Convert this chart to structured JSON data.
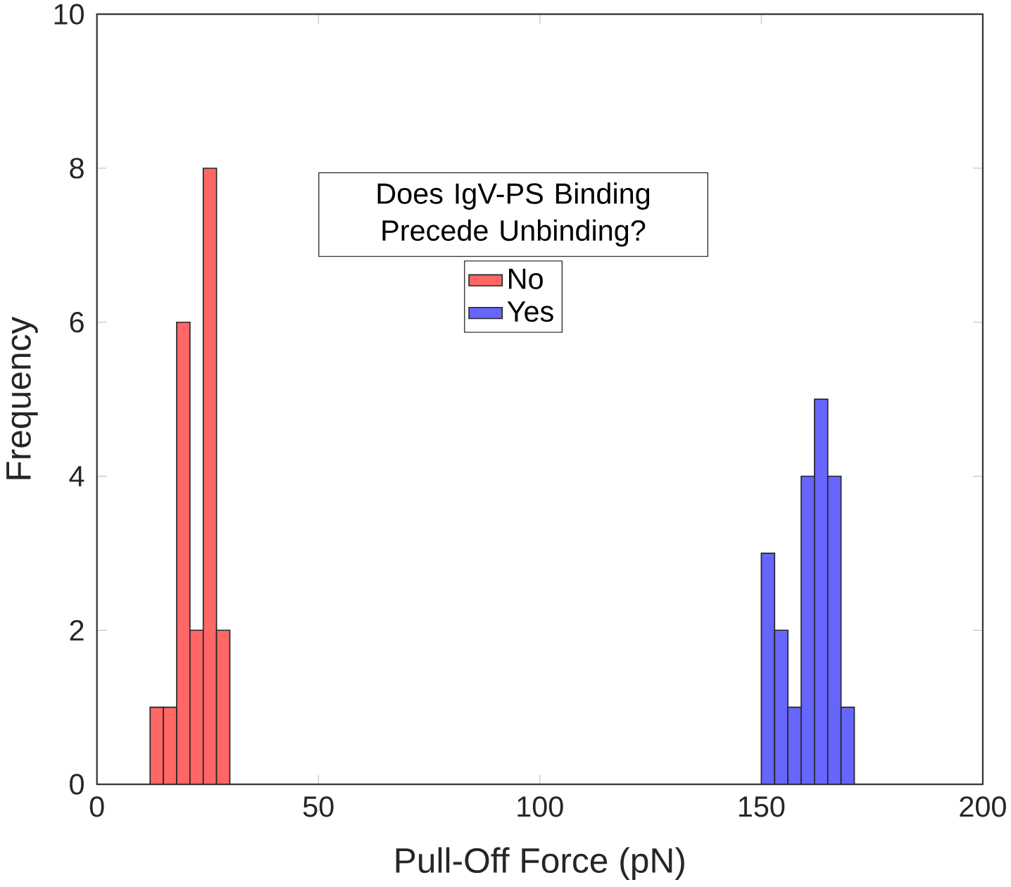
{
  "chart_data": {
    "type": "histogram",
    "xlabel": "Pull-Off Force (pN)",
    "ylabel": "Frequency",
    "legend_title": "Does IgV-PS Binding Precede Unbinding?",
    "legend": "top",
    "bins": [
      12,
      15,
      18,
      21,
      24,
      27,
      30,
      33,
      36,
      39,
      42,
      45,
      48,
      51,
      54,
      57,
      60,
      63,
      66,
      69,
      72,
      75,
      78,
      81,
      84,
      87,
      90,
      93,
      96,
      99,
      102,
      105,
      108,
      111,
      114,
      117,
      120,
      123,
      126,
      129,
      132,
      135,
      138,
      141,
      144,
      147,
      150,
      153,
      156,
      159,
      162,
      165,
      168,
      171
    ],
    "series": [
      {
        "name": "No",
        "color": "#ff6666",
        "values": [
          1,
          1,
          6,
          2,
          8,
          2,
          null,
          null,
          null,
          null,
          null,
          null,
          null,
          null,
          null,
          null,
          null,
          null,
          null,
          null,
          null,
          null,
          null,
          null,
          null,
          null,
          null,
          null,
          null,
          null,
          null,
          null,
          null,
          null,
          null,
          null,
          null,
          null,
          null,
          null,
          null,
          null,
          null,
          null,
          null,
          null,
          null,
          null,
          null,
          null,
          null,
          null,
          null
        ]
      },
      {
        "name": "Yes",
        "color": "#6666ff",
        "values": [
          null,
          null,
          null,
          null,
          null,
          null,
          null,
          null,
          null,
          null,
          null,
          null,
          null,
          null,
          null,
          null,
          null,
          null,
          null,
          null,
          null,
          null,
          null,
          null,
          null,
          null,
          null,
          null,
          null,
          null,
          null,
          null,
          null,
          null,
          null,
          null,
          null,
          null,
          null,
          null,
          null,
          null,
          null,
          null,
          null,
          null,
          3,
          2,
          1,
          4,
          5,
          4,
          1
        ]
      }
    ],
    "xlim": [
      0,
      200
    ],
    "xticks": [
      0,
      50,
      100,
      150,
      200
    ],
    "ylim": [
      0,
      10
    ],
    "yticks": [
      0,
      2,
      4,
      6,
      8,
      10
    ],
    "grid": false
  }
}
